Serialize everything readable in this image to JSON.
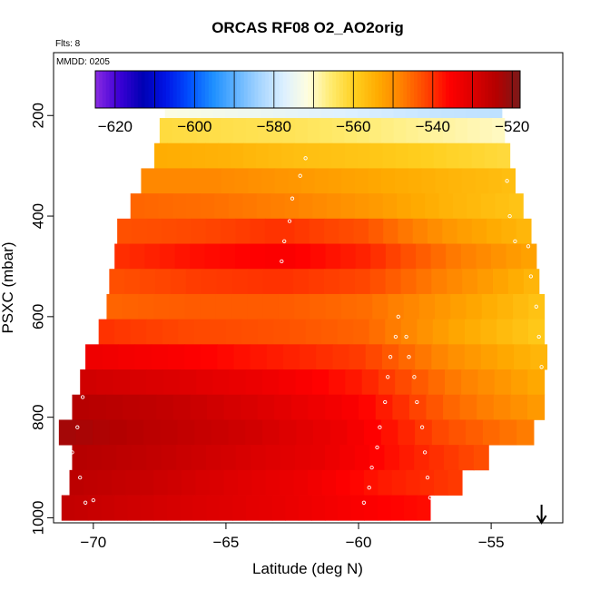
{
  "chart_data": {
    "type": "heatmap",
    "title": "ORCAS RF08 O2_AO2orig",
    "annotations": [
      "Flts: 8",
      "MMDD: 0205"
    ],
    "xlabel": "Latitude (deg N)",
    "ylabel": "PSXC (mbar)",
    "xlim": [
      -71.5,
      -52.3
    ],
    "ylim": [
      1010,
      75
    ],
    "y_reversed": true,
    "x_ticks": [
      -70,
      -65,
      -60,
      -55
    ],
    "y_ticks": [
      200,
      400,
      600,
      800,
      1000
    ],
    "colorbar": {
      "range": [
        -625,
        -518
      ],
      "ticks": [
        -620,
        -600,
        -580,
        -560,
        -540,
        -520
      ],
      "position": "top",
      "colors": [
        "#8a2be2",
        "#3d00d6",
        "#0000b4",
        "#0014e6",
        "#0050ff",
        "#1e90ff",
        "#64b4ff",
        "#a8d6ff",
        "#ddf0ff",
        "#fffee0",
        "#ffeb6e",
        "#ffcf1e",
        "#ffaa00",
        "#ff7f00",
        "#ff4500",
        "#ff0000",
        "#dc0000",
        "#b40000",
        "#7a1a1a"
      ]
    },
    "flight_end_marker": {
      "lat": -53.1,
      "label": "down-arrow"
    },
    "rows": [
      {
        "p": 180,
        "lat_min": -67.3,
        "lat_max": -54.6,
        "values": [
          -572,
          -574,
          -576,
          -578,
          -580,
          -581
        ]
      },
      {
        "p": 230,
        "lat_min": -67.5,
        "lat_max": -54.5,
        "values": [
          -562,
          -563,
          -564,
          -566,
          -568,
          -570
        ]
      },
      {
        "p": 280,
        "lat_min": -67.7,
        "lat_max": -54.3,
        "values": [
          -554,
          -555,
          -557,
          -558,
          -560,
          -562
        ]
      },
      {
        "p": 330,
        "lat_min": -68.2,
        "lat_max": -54.1,
        "values": [
          -549,
          -549,
          -551,
          -553,
          -555,
          -557
        ]
      },
      {
        "p": 380,
        "lat_min": -68.6,
        "lat_max": -53.8,
        "values": [
          -545,
          -546,
          -548,
          -551,
          -555,
          -558
        ]
      },
      {
        "p": 430,
        "lat_min": -69.1,
        "lat_max": -53.5,
        "values": [
          -543,
          -542,
          -540,
          -543,
          -551,
          -556
        ]
      },
      {
        "p": 480,
        "lat_min": -69.2,
        "lat_max": -53.3,
        "values": [
          -540,
          -537,
          -535,
          -539,
          -547,
          -553
        ]
      },
      {
        "p": 530,
        "lat_min": -69.4,
        "lat_max": -53.2,
        "values": [
          -543,
          -541,
          -540,
          -542,
          -549,
          -556
        ]
      },
      {
        "p": 580,
        "lat_min": -69.5,
        "lat_max": -53.0,
        "values": [
          -545,
          -544,
          -544,
          -546,
          -552,
          -558
        ]
      },
      {
        "p": 630,
        "lat_min": -69.8,
        "lat_max": -53.0,
        "values": [
          -540,
          -542,
          -543,
          -545,
          -553,
          -559
        ]
      },
      {
        "p": 680,
        "lat_min": -70.3,
        "lat_max": -52.9,
        "values": [
          -533,
          -535,
          -538,
          -541,
          -550,
          -556
        ]
      },
      {
        "p": 730,
        "lat_min": -70.5,
        "lat_max": -53.0,
        "values": [
          -528,
          -530,
          -533,
          -538,
          -547,
          -554
        ]
      },
      {
        "p": 780,
        "lat_min": -70.8,
        "lat_max": -53.0,
        "values": [
          -524,
          -526,
          -530,
          -535,
          -545,
          -552
        ]
      },
      {
        "p": 830,
        "lat_min": -71.3,
        "lat_max": -53.4,
        "values": [
          -522,
          -525,
          -528,
          -533,
          -542,
          -548
        ]
      },
      {
        "p": 880,
        "lat_min": -70.8,
        "lat_max": -55.1,
        "values": [
          -524,
          -526,
          -529,
          -532,
          -538,
          -543
        ]
      },
      {
        "p": 930,
        "lat_min": -70.9,
        "lat_max": -56.1,
        "values": [
          -525,
          -527,
          -530,
          -533,
          -538,
          -541
        ]
      },
      {
        "p": 980,
        "lat_min": -71.2,
        "lat_max": -57.3,
        "values": [
          -526,
          -528,
          -530,
          -532,
          -535,
          -537
        ]
      }
    ],
    "flight_track": [
      [
        -67.9,
        180
      ],
      [
        -66.5,
        180
      ],
      [
        -63.0,
        180
      ],
      [
        -61.0,
        180
      ],
      [
        -58.0,
        180
      ],
      [
        -56.3,
        180
      ],
      [
        -62.0,
        285
      ],
      [
        -62.2,
        320
      ],
      [
        -62.5,
        365
      ],
      [
        -62.6,
        410
      ],
      [
        -62.8,
        450
      ],
      [
        -62.9,
        490
      ],
      [
        -70.6,
        390
      ],
      [
        -70.8,
        420
      ],
      [
        -71.0,
        460
      ],
      [
        -71.2,
        500
      ],
      [
        -71.3,
        540
      ],
      [
        -71.2,
        590
      ],
      [
        -71.4,
        640
      ],
      [
        -70.5,
        700
      ],
      [
        -70.4,
        760
      ],
      [
        -70.6,
        820
      ],
      [
        -70.8,
        870
      ],
      [
        -70.5,
        920
      ],
      [
        -70.3,
        970
      ],
      [
        -70.0,
        965
      ],
      [
        -59.8,
        970
      ],
      [
        -59.6,
        940
      ],
      [
        -59.5,
        900
      ],
      [
        -59.3,
        860
      ],
      [
        -59.2,
        820
      ],
      [
        -59.0,
        770
      ],
      [
        -58.9,
        720
      ],
      [
        -58.8,
        680
      ],
      [
        -58.6,
        640
      ],
      [
        -58.5,
        600
      ],
      [
        -57.3,
        960
      ],
      [
        -57.4,
        920
      ],
      [
        -57.5,
        870
      ],
      [
        -57.6,
        820
      ],
      [
        -57.8,
        770
      ],
      [
        -57.9,
        720
      ],
      [
        -58.1,
        680
      ],
      [
        -58.2,
        640
      ],
      [
        -53.6,
        460
      ],
      [
        -53.5,
        520
      ],
      [
        -53.3,
        580
      ],
      [
        -53.2,
        640
      ],
      [
        -53.1,
        700
      ],
      [
        -54.4,
        330
      ],
      [
        -54.3,
        400
      ],
      [
        -54.1,
        450
      ]
    ]
  }
}
